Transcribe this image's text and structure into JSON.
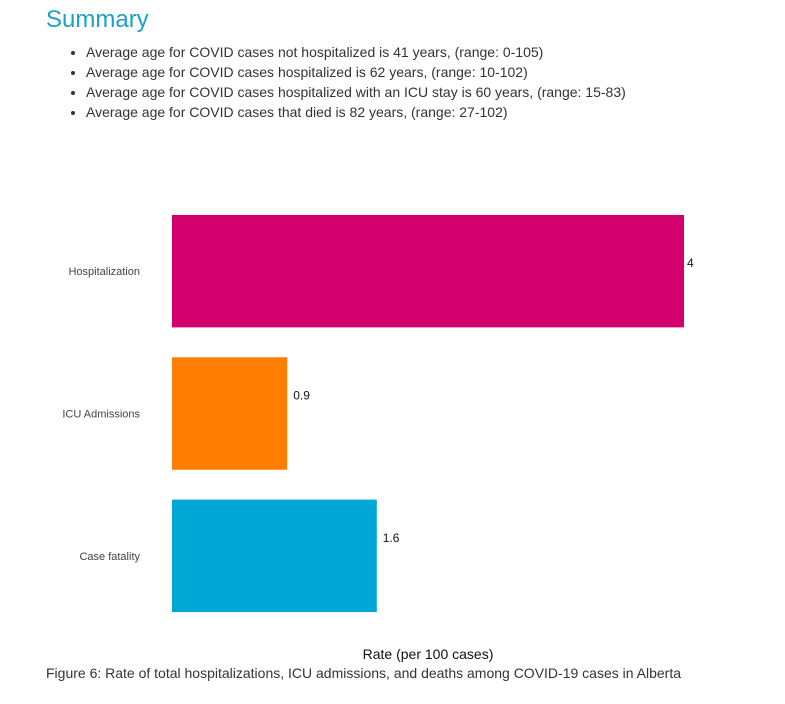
{
  "summary": {
    "title": "Summary",
    "items": [
      "Average age for COVID cases not hospitalized is 41 years, (range: 0-105)",
      "Average age for COVID cases hospitalized is 62 years, (range: 10-102)",
      "Average age for COVID cases hospitalized with an ICU stay is 60 years, (range: 15-83)",
      "Average age for COVID cases that died is 82 years, (range: 27-102)"
    ]
  },
  "chart_data": {
    "type": "bar",
    "orientation": "horizontal",
    "categories": [
      "Hospitalization",
      "ICU Admissions",
      "Case fatality"
    ],
    "values": [
      4,
      0.9,
      1.6
    ],
    "value_labels": [
      "4",
      "0.9",
      "1.6"
    ],
    "colors": [
      "#d4006e",
      "#ff7d00",
      "#00a7d4"
    ],
    "title": "",
    "xlabel": "Rate (per 100 cases)",
    "ylabel": "",
    "xlim": [
      0,
      4
    ],
    "grid": false,
    "legend": "none"
  },
  "caption": "Figure 6: Rate of total hospitalizations, ICU admissions, and deaths among COVID-19 cases in Alberta"
}
